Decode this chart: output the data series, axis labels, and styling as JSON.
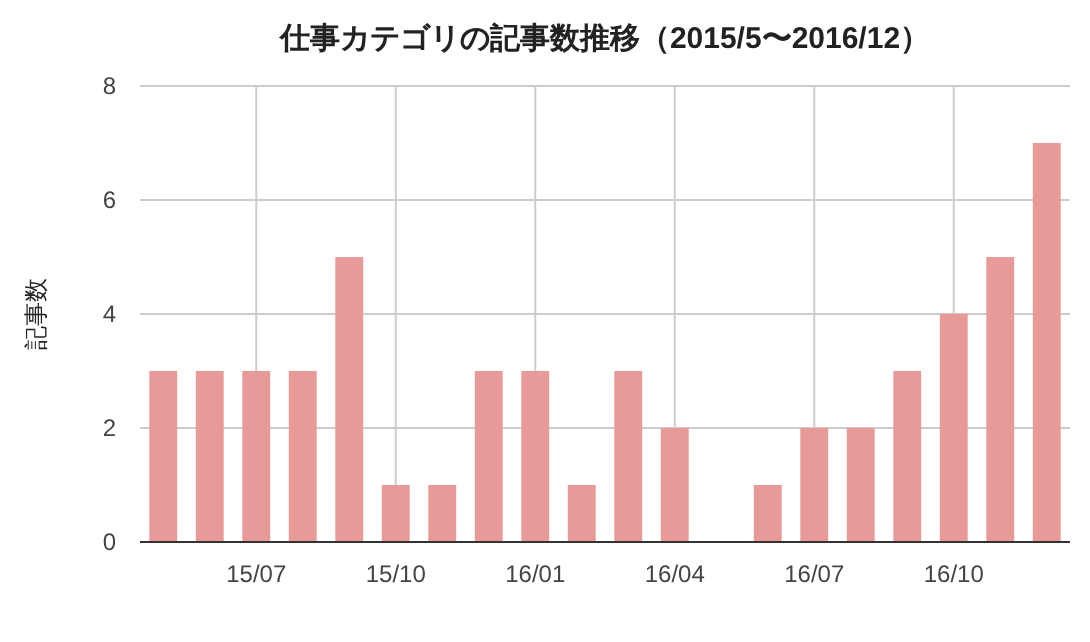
{
  "chart_data": {
    "type": "bar",
    "title": "仕事カテゴリの記事数推移（2015/5〜2016/12）",
    "ylabel": "記事数",
    "categories": [
      null,
      null,
      "15/07",
      null,
      null,
      "15/10",
      null,
      null,
      "16/01",
      null,
      null,
      "16/04",
      null,
      null,
      "16/07",
      null,
      null,
      "16/10",
      null,
      null
    ],
    "values": [
      3,
      3,
      3,
      3,
      5,
      1,
      1,
      3,
      3,
      1,
      3,
      2,
      0,
      1,
      2,
      2,
      3,
      4,
      5,
      7
    ],
    "color": "#e89a98",
    "ylim": [
      0,
      8
    ],
    "yticks": [
      0,
      2,
      4,
      6,
      8
    ],
    "grid": true
  }
}
